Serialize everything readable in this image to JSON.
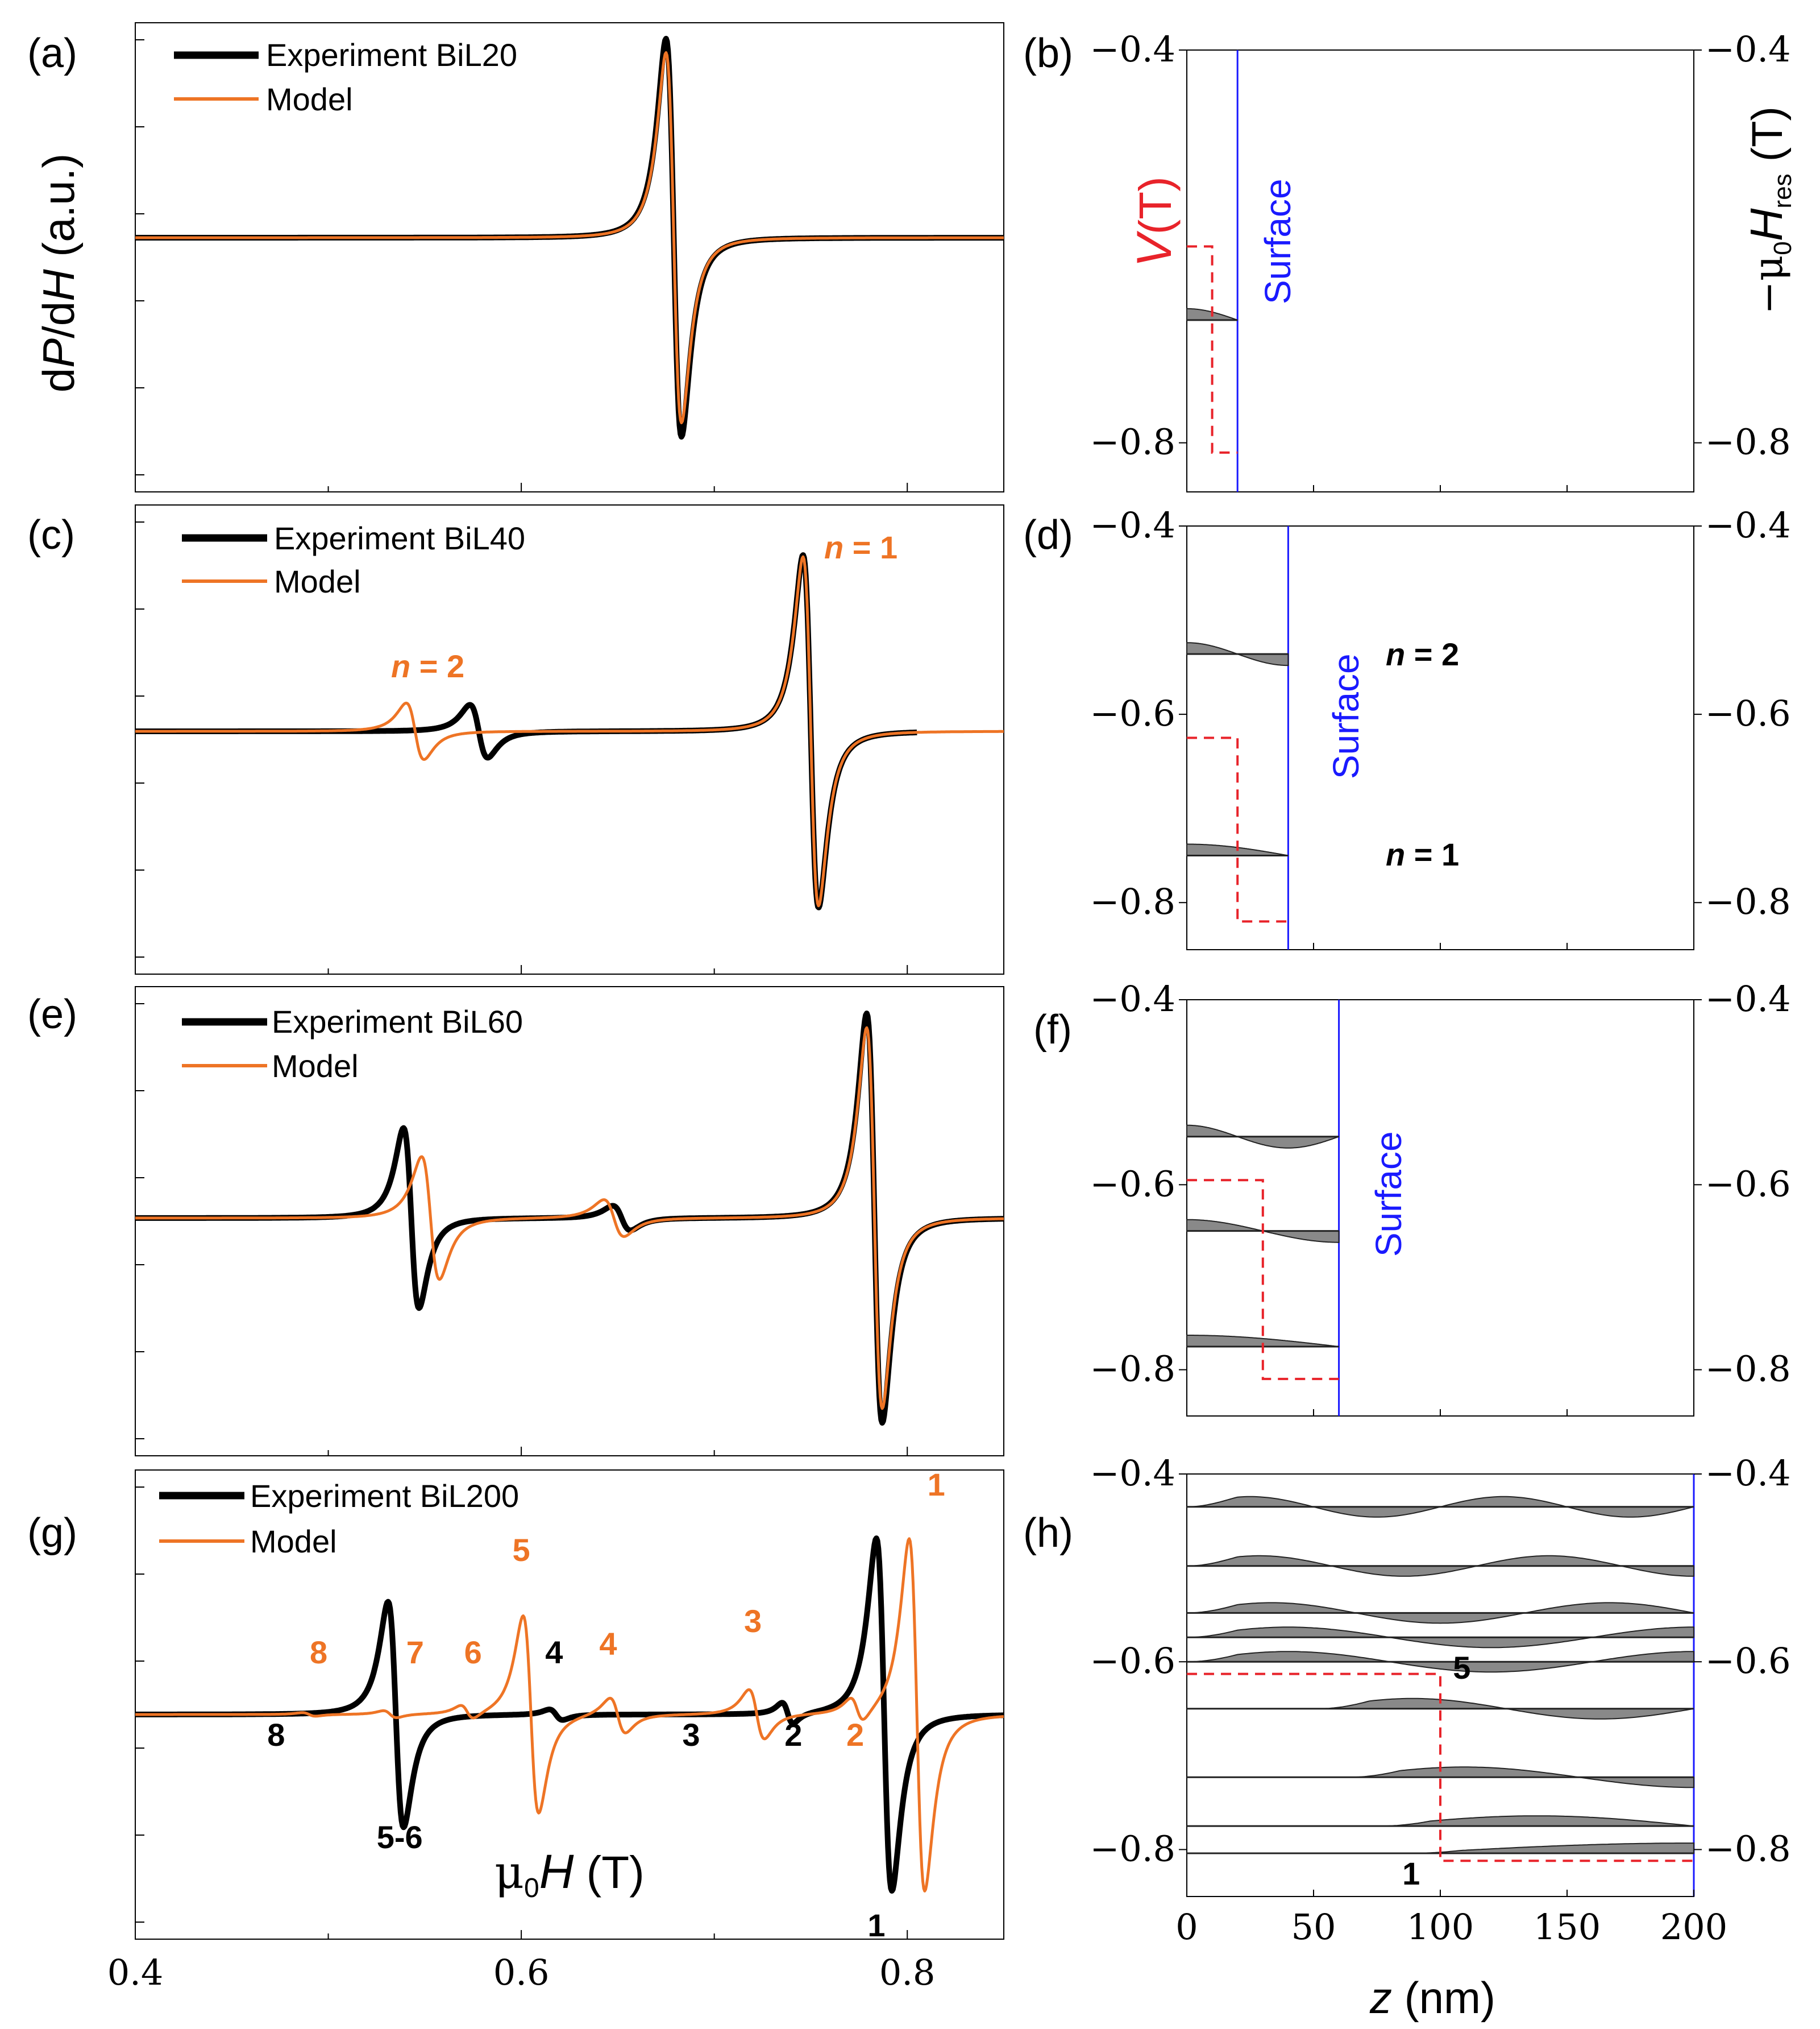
{
  "colors": {
    "experiment": "#000000",
    "model": "#ee7425",
    "potential": "#e8232a",
    "surface": "#1a1aff",
    "mode_fill": "#6b6b6b"
  },
  "left_axis_title": {
    "prefix": "d",
    "P": "P",
    "mid": "/d",
    "H": "H",
    "suffix": " (a.u.)"
  },
  "x_axis_title": {
    "mu": "μ",
    "sub": "0",
    "H": "H",
    "unit": " (T)"
  },
  "z_axis_title": {
    "z": "z",
    "unit": " (nm)"
  },
  "v_axis_title": {
    "V": "V",
    "unit": "(T)"
  },
  "hres_axis_title": {
    "prefix": "−μ",
    "sub0": "0",
    "H": "H",
    "subres": "res",
    "unit": " (T)"
  },
  "panels": [
    {
      "label": "(a)",
      "exp_label": "Experiment BiL20",
      "model_label": "Model"
    },
    {
      "label": "(b)"
    },
    {
      "label": "(c)",
      "exp_label": "Experiment BiL40",
      "model_label": "Model"
    },
    {
      "label": "(d)"
    },
    {
      "label": "(e)",
      "exp_label": "Experiment BiL60",
      "model_label": "Model"
    },
    {
      "label": "(f)"
    },
    {
      "label": "(g)",
      "exp_label": "Experiment BiL200",
      "model_label": "Model"
    },
    {
      "label": "(h)"
    }
  ],
  "surface_label": "Surface",
  "n_prefix": "n",
  "n_eq": " = ",
  "chart_data": [
    {
      "type": "line",
      "panel": "(a)",
      "xlabel": "μ0H (T)",
      "ylabel": "dP/dH (a.u.)",
      "xlim": [
        0.4,
        0.85
      ],
      "x_ticks": [
        0.4,
        0.6,
        0.8
      ],
      "series": [
        {
          "name": "Experiment BiL20",
          "peaks": [
            {
              "center": 0.679,
              "amp": 1.0,
              "width": 0.007
            }
          ],
          "baseline_offset": 0.0
        },
        {
          "name": "Model",
          "peaks": [
            {
              "center": 0.679,
              "amp": 0.93,
              "width": 0.007
            }
          ],
          "baseline_offset": 0.0
        }
      ]
    },
    {
      "type": "line",
      "panel": "(c)",
      "xlim": [
        0.4,
        0.85
      ],
      "x_ticks": [
        0.4,
        0.6,
        0.8
      ],
      "series": [
        {
          "name": "Experiment BiL40",
          "peaks": [
            {
              "center": 0.75,
              "amp": 1.0,
              "width": 0.007
            },
            {
              "center": 0.578,
              "amp": 0.15,
              "width": 0.008
            }
          ],
          "x_end": 0.805
        },
        {
          "name": "Model",
          "peaks": [
            {
              "center": 0.75,
              "amp": 0.99,
              "width": 0.007
            },
            {
              "center": 0.545,
              "amp": 0.16,
              "width": 0.008
            }
          ]
        }
      ],
      "annotations": [
        {
          "text": "n = 2",
          "x": 0.54,
          "color": "model"
        },
        {
          "text": "n = 1",
          "x": 0.79,
          "color": "model"
        }
      ]
    },
    {
      "type": "line",
      "panel": "(e)",
      "xlim": [
        0.4,
        0.85
      ],
      "x_ticks": [
        0.4,
        0.6,
        0.8
      ],
      "series": [
        {
          "name": "Experiment BiL60",
          "peaks": [
            {
              "center": 0.783,
              "amp": 1.0,
              "width": 0.007
            },
            {
              "center": 0.543,
              "amp": 0.44,
              "width": 0.007
            },
            {
              "center": 0.652,
              "amp": 0.06,
              "width": 0.008
            }
          ]
        },
        {
          "name": "Model",
          "peaks": [
            {
              "center": 0.783,
              "amp": 0.93,
              "width": 0.007
            },
            {
              "center": 0.553,
              "amp": 0.3,
              "width": 0.008
            },
            {
              "center": 0.648,
              "amp": 0.09,
              "width": 0.009
            }
          ]
        }
      ]
    },
    {
      "type": "line",
      "panel": "(g)",
      "xlim": [
        0.4,
        0.85
      ],
      "x_ticks": [
        0.4,
        0.6,
        0.8
      ],
      "xlabel": "μ0H (T)",
      "series": [
        {
          "name": "Experiment BiL200",
          "peaks": [
            {
              "center": 0.788,
              "amp": 1.0,
              "width": 0.007
            },
            {
              "center": 0.535,
              "amp": 0.64,
              "width": 0.007
            },
            {
              "center": 0.738,
              "amp": 0.06,
              "width": 0.005
            },
            {
              "center": 0.618,
              "amp": 0.03,
              "width": 0.006
            }
          ]
        },
        {
          "name": "Model",
          "peaks": [
            {
              "center": 0.805,
              "amp": 1.0,
              "width": 0.007
            },
            {
              "center": 0.605,
              "amp": 0.56,
              "width": 0.007
            },
            {
              "center": 0.722,
              "amp": 0.14,
              "width": 0.007
            },
            {
              "center": 0.65,
              "amp": 0.1,
              "width": 0.007
            },
            {
              "center": 0.774,
              "amp": 0.07,
              "width": 0.006
            },
            {
              "center": 0.572,
              "amp": 0.04,
              "width": 0.006
            },
            {
              "center": 0.532,
              "amp": 0.02,
              "width": 0.006
            },
            {
              "center": 0.49,
              "amp": 0.01,
              "width": 0.006
            }
          ]
        }
      ],
      "annotations": [
        {
          "text": "1",
          "x": 0.815,
          "color": "model",
          "pos": "top"
        },
        {
          "text": "5",
          "x": 0.6,
          "color": "model",
          "pos": "top"
        },
        {
          "text": "3",
          "x": 0.72,
          "color": "model",
          "pos": "mid"
        },
        {
          "text": "4",
          "x": 0.645,
          "color": "model",
          "pos": "mid"
        },
        {
          "text": "6",
          "x": 0.575,
          "color": "model",
          "pos": "low"
        },
        {
          "text": "7",
          "x": 0.545,
          "color": "model",
          "pos": "low"
        },
        {
          "text": "8",
          "x": 0.495,
          "color": "model",
          "pos": "low"
        },
        {
          "text": "2",
          "x": 0.773,
          "color": "model",
          "pos": "below"
        },
        {
          "text": "4",
          "x": 0.617,
          "color": "experiment",
          "pos": "low"
        },
        {
          "text": "8",
          "x": 0.473,
          "color": "experiment",
          "pos": "below"
        },
        {
          "text": "3",
          "x": 0.688,
          "color": "experiment",
          "pos": "below"
        },
        {
          "text": "2",
          "x": 0.741,
          "color": "experiment",
          "pos": "below"
        },
        {
          "text": "5-6",
          "x": 0.537,
          "color": "experiment",
          "pos": "bottom"
        },
        {
          "text": "1",
          "x": 0.784,
          "color": "experiment",
          "pos": "bottom"
        }
      ]
    },
    {
      "type": "line",
      "panel": "(b)",
      "xlabel": "z (nm)",
      "ylabel_left": "V (T)",
      "ylabel_right": "−μ0Hres (T)",
      "xlim": [
        0,
        200
      ],
      "ylim": [
        -0.85,
        -0.4
      ],
      "x_ticks": [
        0,
        50,
        100,
        150,
        200
      ],
      "y_ticks": [
        -0.4,
        -0.8
      ],
      "surface_z": 20,
      "potential": {
        "z_step": 10,
        "v_inside": -0.6,
        "v_outside": -0.81
      },
      "modes": [
        {
          "energy": -0.675,
          "nodes": 0
        }
      ]
    },
    {
      "type": "line",
      "panel": "(d)",
      "xlim": [
        0,
        200
      ],
      "ylim": [
        -0.85,
        -0.4
      ],
      "y_ticks": [
        -0.4,
        -0.6,
        -0.8
      ],
      "surface_z": 40,
      "potential": {
        "z_step": 20,
        "v_inside": -0.625,
        "v_outside": -0.82
      },
      "modes": [
        {
          "energy": -0.536,
          "nodes": 1,
          "label": "n = 2"
        },
        {
          "energy": -0.75,
          "nodes": 0,
          "label": "n = 1"
        }
      ]
    },
    {
      "type": "line",
      "panel": "(f)",
      "xlim": [
        0,
        200
      ],
      "ylim": [
        -0.85,
        -0.4
      ],
      "y_ticks": [
        -0.4,
        -0.6,
        -0.8
      ],
      "surface_z": 60,
      "potential": {
        "z_step": 30,
        "v_inside": -0.595,
        "v_outside": -0.81
      },
      "modes": [
        {
          "energy": -0.548,
          "nodes": 2
        },
        {
          "energy": -0.65,
          "nodes": 1
        },
        {
          "energy": -0.775,
          "nodes": 0
        }
      ]
    },
    {
      "type": "line",
      "panel": "(h)",
      "xlim": [
        0,
        200
      ],
      "ylim": [
        -0.85,
        -0.4
      ],
      "x_ticks": [
        0,
        50,
        100,
        150,
        200
      ],
      "y_ticks": [
        -0.4,
        -0.6,
        -0.8
      ],
      "surface_z": 200,
      "potential": {
        "z_step": 100,
        "v_inside": -0.613,
        "v_outside": -0.812
      },
      "modes": [
        {
          "energy": -0.435,
          "nodes": 7
        },
        {
          "energy": -0.498,
          "nodes": 6
        },
        {
          "energy": -0.548,
          "nodes": 5
        },
        {
          "energy": -0.574,
          "nodes": 4
        },
        {
          "energy": -0.6,
          "nodes": 4,
          "label": "5"
        },
        {
          "energy": -0.65,
          "nodes": 3
        },
        {
          "energy": -0.723,
          "nodes": 2
        },
        {
          "energy": -0.775,
          "nodes": 1
        },
        {
          "energy": -0.804,
          "nodes": 0,
          "label": "1"
        }
      ]
    }
  ]
}
